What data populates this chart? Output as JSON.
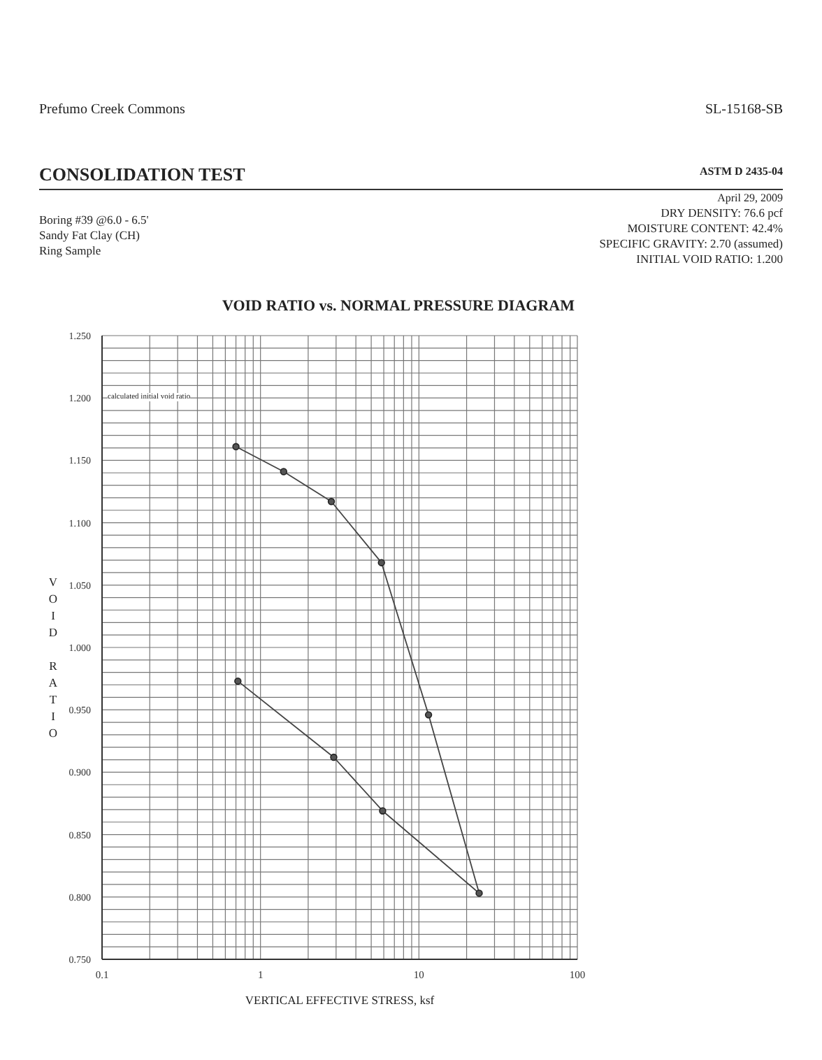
{
  "chart_data": {
    "type": "line",
    "title": "VOID RATIO vs. NORMAL PRESSURE DIAGRAM",
    "xlabel": "VERTICAL EFFECTIVE STRESS, ksf",
    "ylabel": "VOID RATIO",
    "annotations": [
      "Prefumo Creek Commons",
      "SL-15168-SB",
      "CONSOLIDATION TEST",
      "ASTM D 2435-04",
      "April 29, 2009",
      "Boring #39 @6.0 - 6.5'",
      "Sandy Fat Clay (CH)",
      "Ring Sample",
      "DRY DENSITY: 76.6 pcf",
      "MOISTURE CONTENT: 42.4%",
      "SPECIFIC GRAVITY: 2.70 (assumed)",
      "INITIAL VOID RATIO: 1.200",
      "calculated initial void ratio"
    ],
    "series": [
      {
        "color": "#444444",
        "x": [
          0.7,
          1.4,
          2.8,
          5.8,
          11.5,
          24,
          5.9,
          2.9,
          0.72
        ],
        "values": [
          1.161,
          1.141,
          1.117,
          1.068,
          0.946,
          0.803,
          0.869,
          0.912,
          0.973
        ]
      }
    ],
    "log": "x",
    "xlim": [
      0.1,
      100
    ],
    "xticks": [
      0.1,
      1,
      10,
      100
    ],
    "ylim": [
      0.75,
      1.25
    ],
    "yticks": [
      {
        "value": 0.75,
        "label": "0.750"
      },
      {
        "value": 0.8,
        "label": "0.800"
      },
      {
        "value": 0.85,
        "label": "0.850"
      },
      {
        "value": 0.9,
        "label": "0.900"
      },
      {
        "value": 0.95,
        "label": "0.950"
      },
      {
        "value": 1.0,
        "label": "1.000"
      },
      {
        "value": 1.05,
        "label": "1.050"
      },
      {
        "value": 1.1,
        "label": "1.100"
      },
      {
        "value": 1.15,
        "label": "1.150"
      },
      {
        "value": 1.2,
        "label": "1.200"
      },
      {
        "value": 1.25,
        "label": "1.250"
      }
    ],
    "grid": true,
    "marker": "circle",
    "line_style": "solid"
  }
}
